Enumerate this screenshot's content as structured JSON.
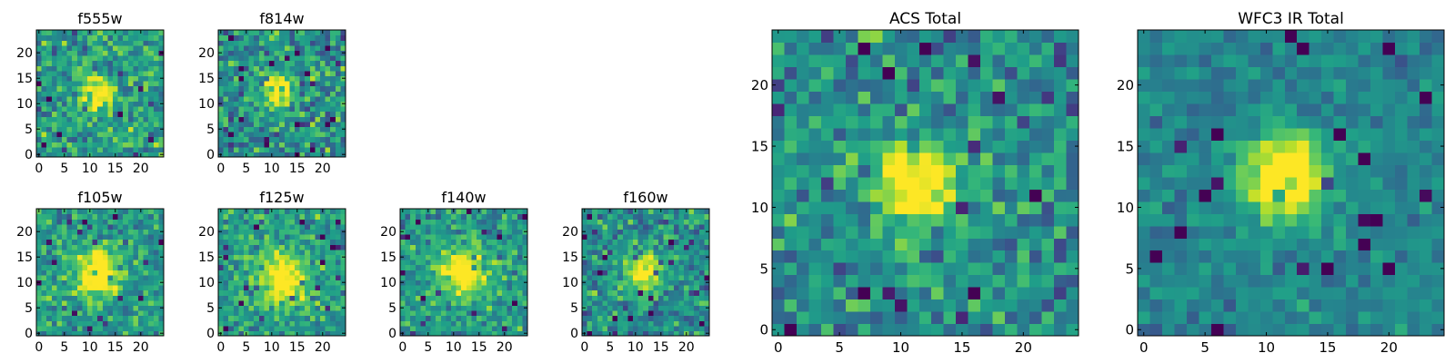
{
  "figure": {
    "description_colormap": "viridis"
  },
  "chart_data": [
    {
      "id": "f555w",
      "type": "heatmap",
      "title": "f555w",
      "grid": [
        25,
        25
      ],
      "xticks": [
        0,
        5,
        10,
        15,
        20
      ],
      "yticks": [
        0,
        5,
        10,
        15,
        20
      ],
      "xlim": [
        0,
        24
      ],
      "ylim": [
        0,
        24
      ],
      "center": [
        11.5,
        12
      ],
      "sigma": 2.3,
      "peak": 0.55,
      "noise": 0.42,
      "base": 0.55,
      "seed": 11
    },
    {
      "id": "f814w",
      "type": "heatmap",
      "title": "f814w",
      "grid": [
        25,
        25
      ],
      "xticks": [
        0,
        5,
        10,
        15,
        20
      ],
      "yticks": [
        0,
        5,
        10,
        15,
        20
      ],
      "xlim": [
        0,
        24
      ],
      "ylim": [
        0,
        24
      ],
      "center": [
        11.5,
        12.5
      ],
      "sigma": 2.4,
      "peak": 0.6,
      "noise": 0.45,
      "base": 0.5,
      "seed": 23
    },
    {
      "id": "f105w",
      "type": "heatmap",
      "title": "f105w",
      "grid": [
        25,
        25
      ],
      "xticks": [
        0,
        5,
        10,
        15,
        20
      ],
      "yticks": [
        0,
        5,
        10,
        15,
        20
      ],
      "xlim": [
        0,
        24
      ],
      "ylim": [
        0,
        24
      ],
      "center": [
        11.5,
        12
      ],
      "sigma": 3.2,
      "peak": 0.6,
      "noise": 0.35,
      "base": 0.55,
      "seed": 37
    },
    {
      "id": "f125w",
      "type": "heatmap",
      "title": "f125w",
      "grid": [
        25,
        25
      ],
      "xticks": [
        0,
        5,
        10,
        15,
        20
      ],
      "yticks": [
        0,
        5,
        10,
        15,
        20
      ],
      "xlim": [
        0,
        24
      ],
      "ylim": [
        0,
        24
      ],
      "center": [
        12,
        10.5
      ],
      "sigma": 3.4,
      "peak": 0.6,
      "noise": 0.35,
      "base": 0.55,
      "seed": 41
    },
    {
      "id": "f140w",
      "type": "heatmap",
      "title": "f140w",
      "grid": [
        25,
        25
      ],
      "xticks": [
        0,
        5,
        10,
        15,
        20
      ],
      "yticks": [
        0,
        5,
        10,
        15,
        20
      ],
      "xlim": [
        0,
        24
      ],
      "ylim": [
        0,
        24
      ],
      "center": [
        11.5,
        12
      ],
      "sigma": 3.2,
      "peak": 0.6,
      "noise": 0.35,
      "base": 0.55,
      "seed": 53
    },
    {
      "id": "f160w",
      "type": "heatmap",
      "title": "f160w",
      "grid": [
        25,
        25
      ],
      "xticks": [
        0,
        5,
        10,
        15,
        20
      ],
      "yticks": [
        0,
        5,
        10,
        15,
        20
      ],
      "xlim": [
        0,
        24
      ],
      "ylim": [
        0,
        24
      ],
      "center": [
        11.5,
        12
      ],
      "sigma": 2.8,
      "peak": 0.6,
      "noise": 0.4,
      "base": 0.5,
      "seed": 67
    },
    {
      "id": "acs",
      "type": "heatmap",
      "title": "ACS Total",
      "grid": [
        25,
        25
      ],
      "xticks": [
        0,
        5,
        10,
        15,
        20
      ],
      "yticks": [
        0,
        5,
        10,
        15,
        20
      ],
      "xlim": [
        0,
        24
      ],
      "ylim": [
        0,
        24
      ],
      "center": [
        11.5,
        12
      ],
      "sigma": 2.2,
      "peak": 0.7,
      "noise": 0.4,
      "base": 0.5,
      "seed": 79
    },
    {
      "id": "wfc3",
      "type": "heatmap",
      "title": "WFC3 IR Total",
      "grid": [
        25,
        25
      ],
      "xticks": [
        0,
        5,
        10,
        15,
        20
      ],
      "yticks": [
        0,
        5,
        10,
        15,
        20
      ],
      "xlim": [
        0,
        24
      ],
      "ylim": [
        0,
        24
      ],
      "center": [
        11.5,
        12.5
      ],
      "sigma": 2.4,
      "peak": 0.75,
      "noise": 0.22,
      "base": 0.45,
      "seed": 97
    }
  ]
}
